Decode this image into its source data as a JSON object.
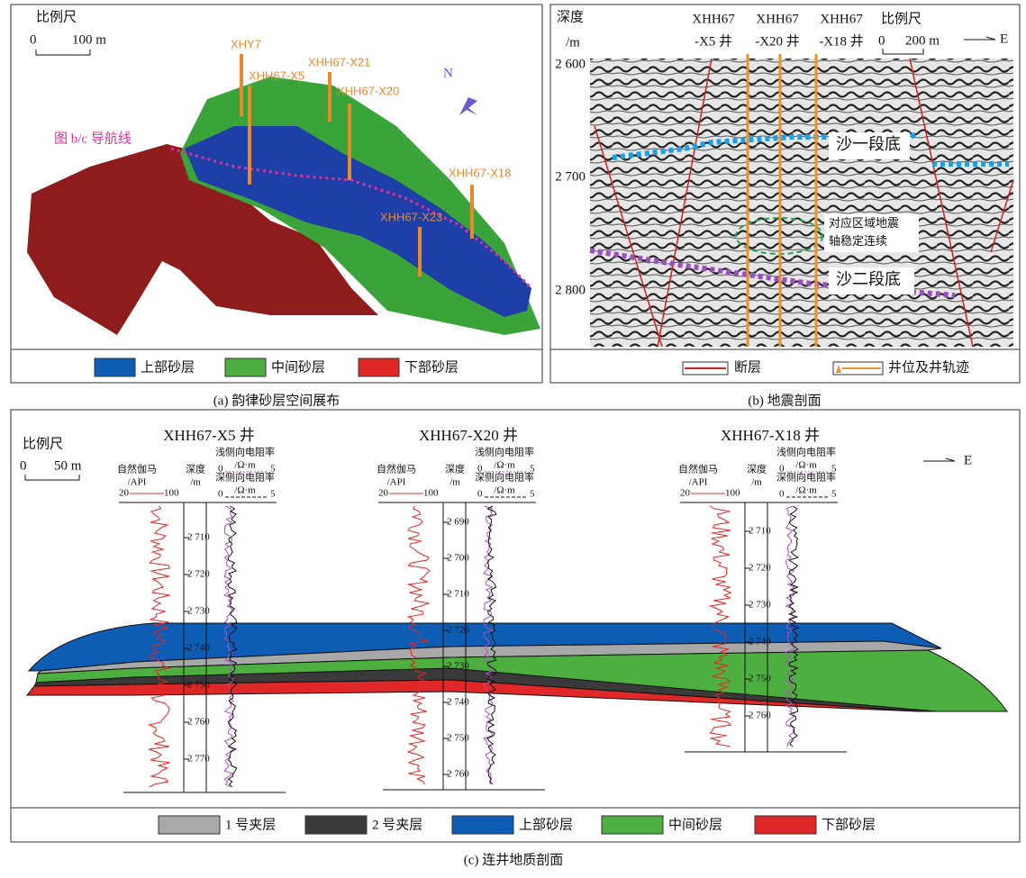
{
  "panel_a": {
    "caption": "(a) 韵律砂层空间展布",
    "scale": {
      "title": "比例尺",
      "zero": "0",
      "length": "100 m"
    },
    "wells": [
      "XHY7",
      "XHH67-X5",
      "XHH67-X21",
      "XHH67-X20",
      "XHH67-X18",
      "XHH67-X23"
    ],
    "nav_line": "图 b/c 导航线",
    "north": "N",
    "legend": [
      "上部砂层",
      "中间砂层",
      "下部砂层"
    ]
  },
  "panel_b": {
    "caption": "(b) 地震剖面",
    "depth_label": [
      "深度",
      "/m"
    ],
    "wells": [
      [
        "XHH67",
        "-X5 井"
      ],
      [
        "XHH67",
        "-X20 井"
      ],
      [
        "XHH67",
        "-X18 井"
      ]
    ],
    "scale": {
      "title": "比例尺",
      "zero": "0",
      "length": "200 m"
    },
    "east": "E",
    "depth_ticks": [
      "2 600",
      "2 700",
      "2 800"
    ],
    "annotations": {
      "sha1": "沙一段底",
      "note": [
        "对应区域地震",
        "轴稳定连续"
      ],
      "sha2": "沙二段底"
    },
    "legend": [
      "断层",
      "井位及井轨迹"
    ]
  },
  "panel_c": {
    "caption": "(c) 连井地质剖面",
    "scale": {
      "title": "比例尺",
      "zero": "0",
      "length": "50 m"
    },
    "east": "E",
    "wells": [
      {
        "name": "XHH67-X5 井",
        "gr": [
          "自然伽马",
          "/API"
        ],
        "gr_range": [
          "20",
          "100"
        ],
        "depth": [
          "深度",
          "/m"
        ],
        "shallow": [
          "浅侧向电阻率",
          "/Ω·m"
        ],
        "shallow_range": [
          "0",
          "5"
        ],
        "deep": [
          "深侧向电阻率",
          "/Ω·m"
        ],
        "deep_range": [
          "0",
          "5"
        ],
        "ticks": [
          "2 710",
          "2 720",
          "2 730",
          "2 740",
          "2 750",
          "2 760",
          "2 770"
        ]
      },
      {
        "name": "XHH67-X20 井",
        "gr": [
          "自然伽马",
          "/API"
        ],
        "gr_range": [
          "20",
          "100"
        ],
        "depth": [
          "深度",
          "/m"
        ],
        "shallow": [
          "浅侧向电阻率",
          "/Ω·m"
        ],
        "shallow_range": [
          "0",
          "5"
        ],
        "deep": [
          "深侧向电阻率",
          "/Ω·m"
        ],
        "deep_range": [
          "0",
          "5"
        ],
        "ticks": [
          "2 690",
          "2 700",
          "2 710",
          "2 720",
          "2 730",
          "2 740",
          "2 750",
          "2 760"
        ]
      },
      {
        "name": "XHH67-X18 井",
        "gr": [
          "自然伽马",
          "/API"
        ],
        "gr_range": [
          "20",
          "100"
        ],
        "depth": [
          "深度",
          "/m"
        ],
        "shallow": [
          "浅侧向电阻率",
          "/Ω·m"
        ],
        "shallow_range": [
          "0",
          "5"
        ],
        "deep": [
          "深侧向电阻率",
          "/Ω·m"
        ],
        "deep_range": [
          "0",
          "5"
        ],
        "ticks": [
          "2 710",
          "2 720",
          "2 730",
          "2 740",
          "2 750",
          "2 760"
        ]
      }
    ],
    "legend": [
      "1 号夹层",
      "2 号夹层",
      "上部砂层",
      "中间砂层",
      "下部砂层"
    ]
  }
}
